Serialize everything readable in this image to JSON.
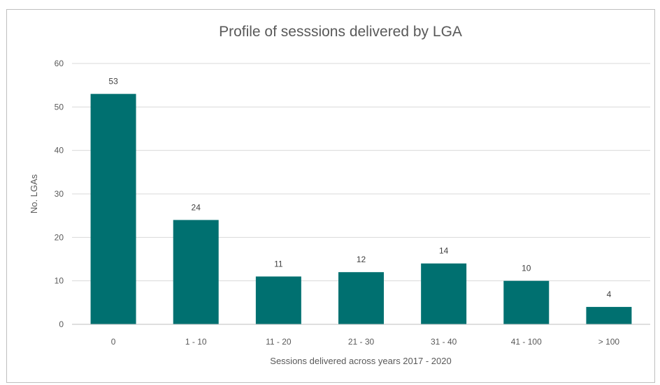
{
  "chart_data": {
    "type": "bar",
    "title": "Profile of sesssions delivered by LGA",
    "xlabel": "Sessions delivered across years 2017 - 2020",
    "ylabel": "No. LGAs",
    "categories": [
      "0",
      "1 - 10",
      "11 - 20",
      "21 - 30",
      "31 - 40",
      "41 - 100",
      "> 100"
    ],
    "values": [
      53,
      24,
      11,
      12,
      14,
      10,
      4
    ],
    "data_labels": [
      "53",
      "24",
      "11",
      "12",
      "14",
      "10",
      "4"
    ],
    "ylim": [
      0,
      60
    ],
    "yticks": [
      0,
      10,
      20,
      30,
      40,
      50,
      60
    ],
    "grid": true,
    "legend": "none",
    "bar_color": "#007070",
    "gridline_color": "#d9d9d9"
  }
}
